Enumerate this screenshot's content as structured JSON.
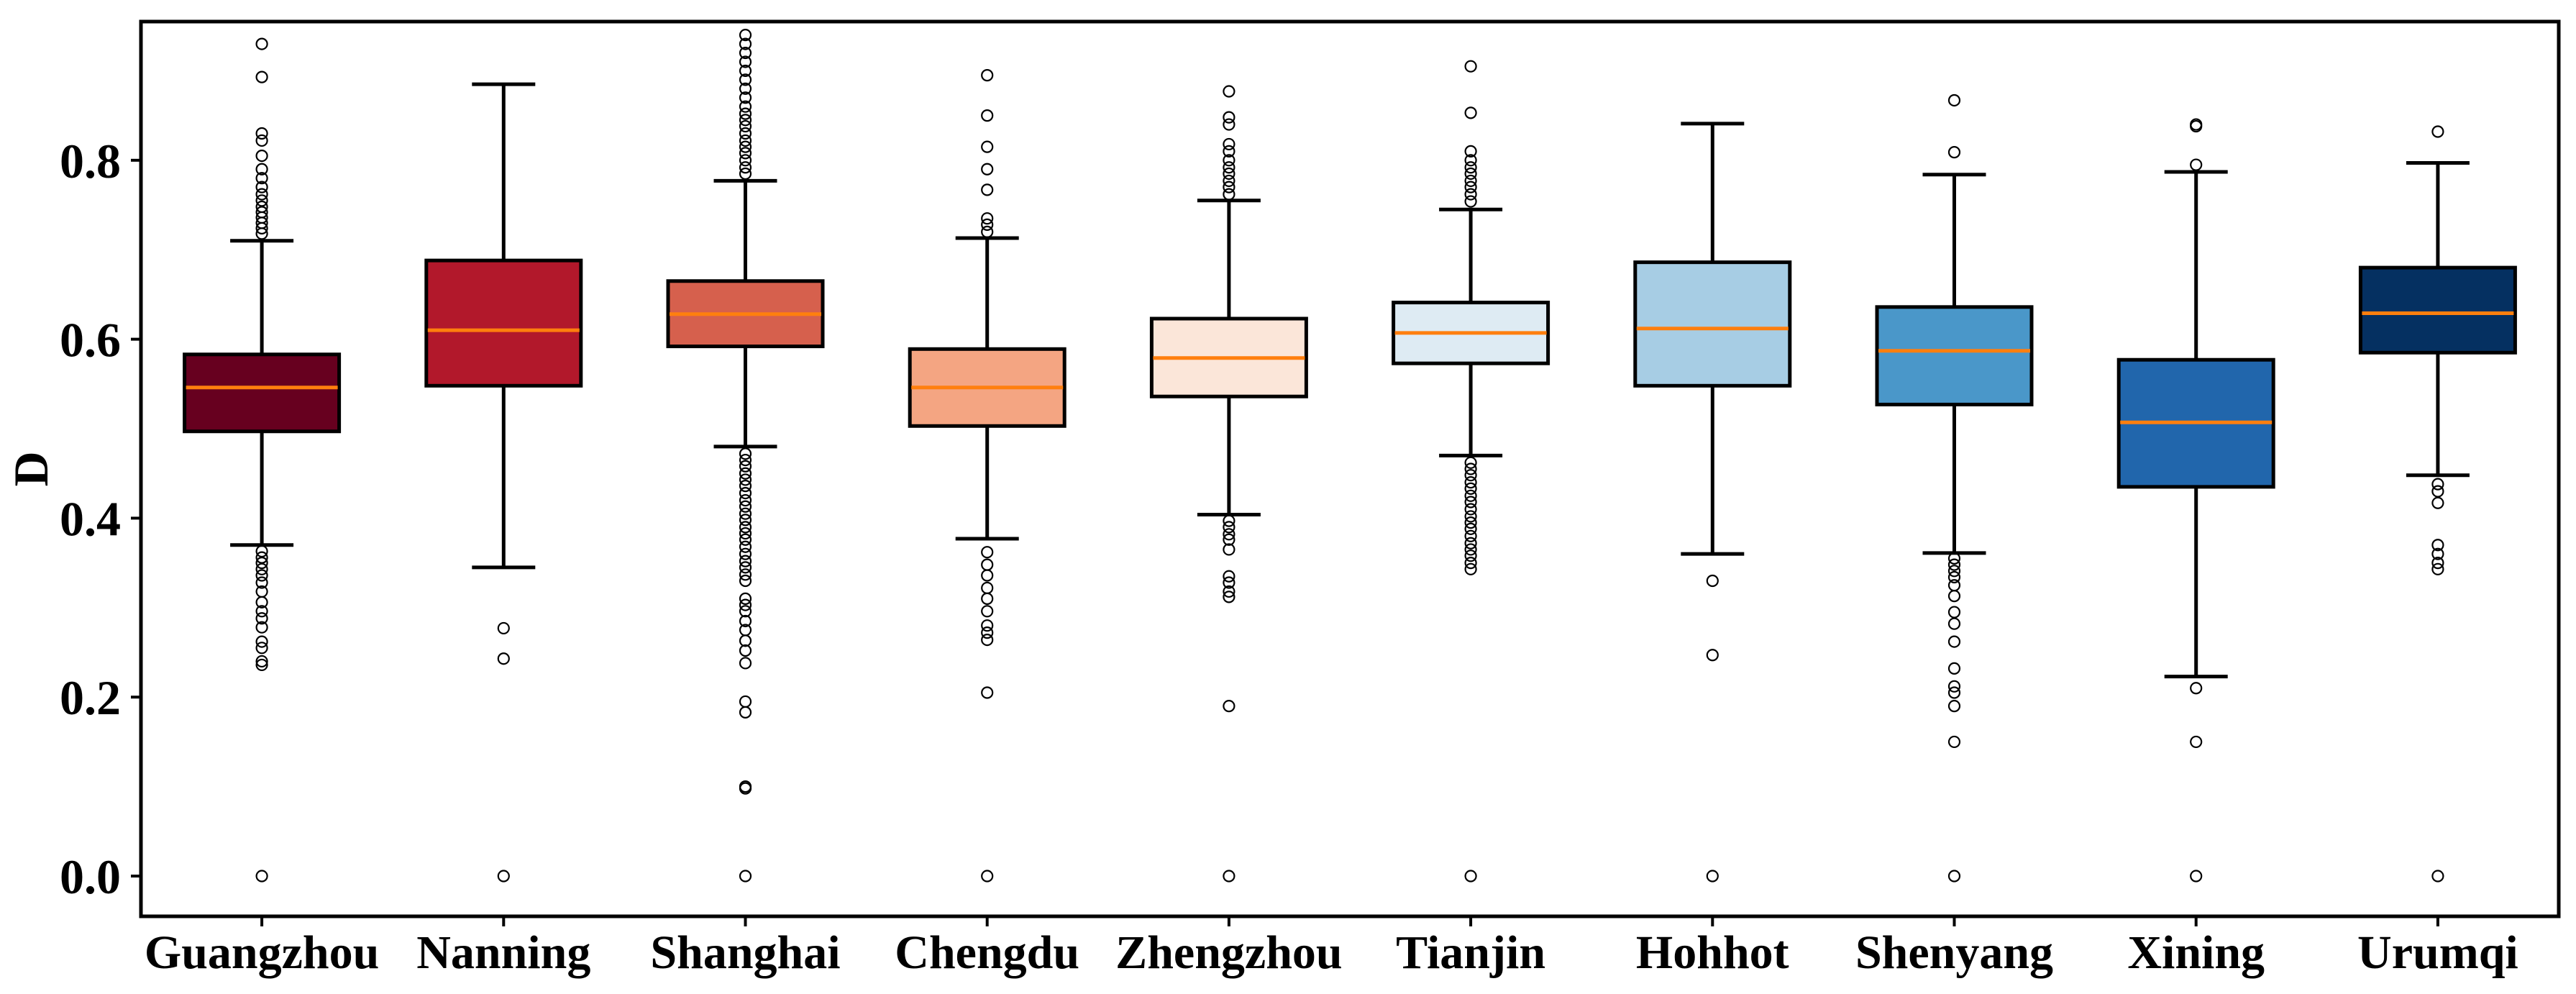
{
  "chart_data": {
    "type": "box",
    "title": "",
    "xlabel": "",
    "ylabel": "D",
    "ylim": [
      -0.045,
      0.955
    ],
    "yticks": [
      0.0,
      0.2,
      0.4,
      0.6,
      0.8
    ],
    "ytick_labels": [
      "0.0",
      "0.2",
      "0.4",
      "0.6",
      "0.8"
    ],
    "grid": false,
    "median_color": "#ff7f0e",
    "categories": [
      "Guangzhou",
      "Nanning",
      "Shanghai",
      "Chengdu",
      "Zhengzhou",
      "Tianjin",
      "Hohhot",
      "Shenyang",
      "Xining",
      "Urumqi"
    ],
    "colors": [
      "#67001f",
      "#b2182b",
      "#d6604d",
      "#f4a582",
      "#fbe6d9",
      "#deebf3",
      "#a7cde4",
      "#4a97c9",
      "#2166ac",
      "#053061"
    ],
    "boxes": [
      {
        "name": "Guangzhou",
        "whisker_low": 0.37,
        "q1": 0.497,
        "median": 0.546,
        "q3": 0.583,
        "whisker_high": 0.71,
        "outliers": [
          0.93,
          0.893,
          0.83,
          0.822,
          0.805,
          0.79,
          0.78,
          0.77,
          0.762,
          0.755,
          0.748,
          0.742,
          0.736,
          0.73,
          0.724,
          0.718,
          0.363,
          0.356,
          0.35,
          0.343,
          0.336,
          0.328,
          0.318,
          0.306,
          0.296,
          0.288,
          0.278,
          0.262,
          0.255,
          0.24,
          0.236,
          0.0
        ]
      },
      {
        "name": "Nanning",
        "whisker_low": 0.345,
        "q1": 0.548,
        "median": 0.61,
        "q3": 0.688,
        "whisker_high": 0.885,
        "outliers": [
          0.277,
          0.243,
          0.0
        ]
      },
      {
        "name": "Shanghai",
        "whisker_low": 0.48,
        "q1": 0.592,
        "median": 0.628,
        "q3": 0.665,
        "whisker_high": 0.777,
        "outliers": [
          0.94,
          0.93,
          0.92,
          0.91,
          0.9,
          0.89,
          0.88,
          0.87,
          0.86,
          0.852,
          0.845,
          0.838,
          0.83,
          0.822,
          0.815,
          0.808,
          0.8,
          0.792,
          0.785,
          0.472,
          0.465,
          0.458,
          0.45,
          0.443,
          0.436,
          0.428,
          0.42,
          0.413,
          0.405,
          0.398,
          0.39,
          0.383,
          0.376,
          0.368,
          0.36,
          0.352,
          0.345,
          0.337,
          0.33,
          0.31,
          0.303,
          0.296,
          0.285,
          0.275,
          0.263,
          0.252,
          0.238,
          0.195,
          0.183,
          0.1,
          0.098,
          0.0
        ]
      },
      {
        "name": "Chengdu",
        "whisker_low": 0.377,
        "q1": 0.503,
        "median": 0.546,
        "q3": 0.589,
        "whisker_high": 0.713,
        "outliers": [
          0.895,
          0.85,
          0.815,
          0.79,
          0.767,
          0.735,
          0.728,
          0.72,
          0.362,
          0.348,
          0.336,
          0.322,
          0.31,
          0.296,
          0.28,
          0.272,
          0.264,
          0.205,
          0.0
        ]
      },
      {
        "name": "Zhengzhou",
        "whisker_low": 0.404,
        "q1": 0.536,
        "median": 0.579,
        "q3": 0.623,
        "whisker_high": 0.755,
        "outliers": [
          0.877,
          0.848,
          0.84,
          0.818,
          0.81,
          0.8,
          0.792,
          0.785,
          0.777,
          0.77,
          0.762,
          0.397,
          0.39,
          0.382,
          0.376,
          0.365,
          0.335,
          0.328,
          0.318,
          0.312,
          0.19,
          0.0
        ]
      },
      {
        "name": "Tianjin",
        "whisker_low": 0.47,
        "q1": 0.573,
        "median": 0.607,
        "q3": 0.641,
        "whisker_high": 0.745,
        "outliers": [
          0.905,
          0.853,
          0.81,
          0.8,
          0.792,
          0.785,
          0.777,
          0.77,
          0.762,
          0.754,
          0.462,
          0.455,
          0.448,
          0.44,
          0.433,
          0.425,
          0.418,
          0.41,
          0.402,
          0.395,
          0.388,
          0.38,
          0.372,
          0.365,
          0.358,
          0.35,
          0.343,
          0.0
        ]
      },
      {
        "name": "Hohhot",
        "whisker_low": 0.36,
        "q1": 0.548,
        "median": 0.612,
        "q3": 0.686,
        "whisker_high": 0.841,
        "outliers": [
          0.33,
          0.247,
          0.0
        ]
      },
      {
        "name": "Shenyang",
        "whisker_low": 0.361,
        "q1": 0.527,
        "median": 0.587,
        "q3": 0.636,
        "whisker_high": 0.784,
        "outliers": [
          0.867,
          0.809,
          0.355,
          0.348,
          0.341,
          0.334,
          0.325,
          0.313,
          0.295,
          0.282,
          0.262,
          0.232,
          0.212,
          0.205,
          0.19,
          0.15,
          0.0
        ]
      },
      {
        "name": "Xining",
        "whisker_low": 0.223,
        "q1": 0.435,
        "median": 0.507,
        "q3": 0.577,
        "whisker_high": 0.787,
        "outliers": [
          0.84,
          0.838,
          0.795,
          0.21,
          0.15,
          0.0
        ]
      },
      {
        "name": "Urumqi",
        "whisker_low": 0.448,
        "q1": 0.585,
        "median": 0.629,
        "q3": 0.68,
        "whisker_high": 0.797,
        "outliers": [
          0.832,
          0.438,
          0.43,
          0.417,
          0.37,
          0.36,
          0.35,
          0.343,
          0.0
        ]
      }
    ]
  }
}
